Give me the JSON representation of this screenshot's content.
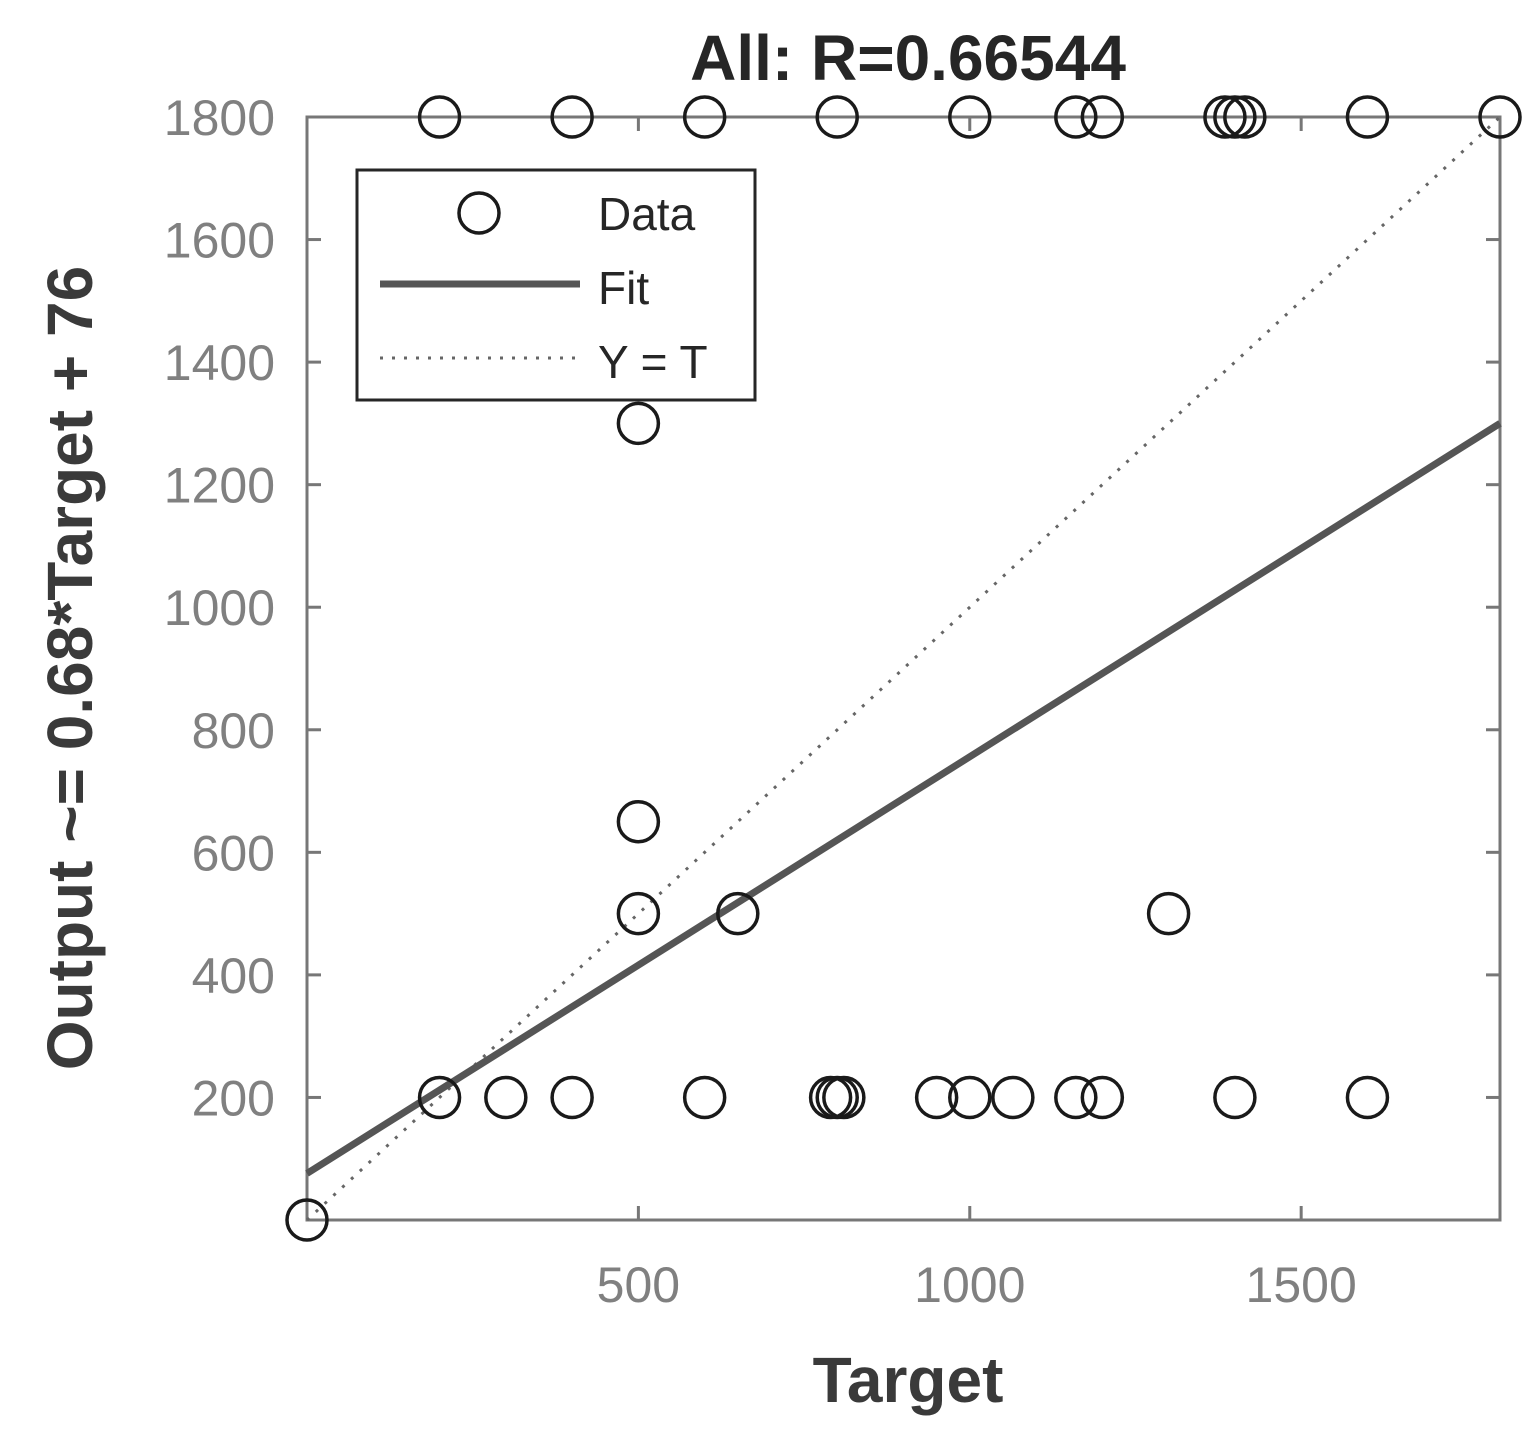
{
  "chart_data": {
    "type": "scatter",
    "title": "All: R=0.66544",
    "xlabel": "Target",
    "ylabel": "Output ~= 0.68*Target + 76",
    "xlim": [
      0,
      1800
    ],
    "ylim": [
      0,
      1800
    ],
    "xticks": [
      500,
      1000,
      1500
    ],
    "yticks": [
      200,
      400,
      600,
      800,
      1000,
      1200,
      1400,
      1600,
      1800
    ],
    "grid": false,
    "legend": {
      "position": "top-left",
      "entries": [
        {
          "label": "Data",
          "style": "circle-marker"
        },
        {
          "label": "Fit",
          "style": "solid-line"
        },
        {
          "label": "Y = T",
          "style": "dotted-line"
        }
      ]
    },
    "fit": {
      "slope": 0.68,
      "intercept": 76
    },
    "identity_line": true,
    "points": [
      {
        "x": 200,
        "y": 1800
      },
      {
        "x": 400,
        "y": 1800
      },
      {
        "x": 600,
        "y": 1800
      },
      {
        "x": 800,
        "y": 1800
      },
      {
        "x": 1000,
        "y": 1800
      },
      {
        "x": 1160,
        "y": 1800
      },
      {
        "x": 1200,
        "y": 1800
      },
      {
        "x": 1385,
        "y": 1800
      },
      {
        "x": 1400,
        "y": 1800
      },
      {
        "x": 1415,
        "y": 1800
      },
      {
        "x": 1600,
        "y": 1800
      },
      {
        "x": 1800,
        "y": 1800
      },
      {
        "x": 500,
        "y": 1300
      },
      {
        "x": 500,
        "y": 650
      },
      {
        "x": 500,
        "y": 500
      },
      {
        "x": 650,
        "y": 500
      },
      {
        "x": 1300,
        "y": 500
      },
      {
        "x": 200,
        "y": 200
      },
      {
        "x": 300,
        "y": 200
      },
      {
        "x": 400,
        "y": 200
      },
      {
        "x": 600,
        "y": 200
      },
      {
        "x": 790,
        "y": 200
      },
      {
        "x": 800,
        "y": 200
      },
      {
        "x": 810,
        "y": 200
      },
      {
        "x": 950,
        "y": 200
      },
      {
        "x": 1000,
        "y": 200
      },
      {
        "x": 1065,
        "y": 200
      },
      {
        "x": 1160,
        "y": 200
      },
      {
        "x": 1200,
        "y": 200
      },
      {
        "x": 1400,
        "y": 200
      },
      {
        "x": 1600,
        "y": 200
      },
      {
        "x": 0,
        "y": 0
      }
    ],
    "colors": {
      "marker": "#1a1a1a",
      "fit": "#555555",
      "identity": "#666666",
      "axes": "#777777",
      "tick_label": "#808080",
      "title": "#262626"
    }
  }
}
